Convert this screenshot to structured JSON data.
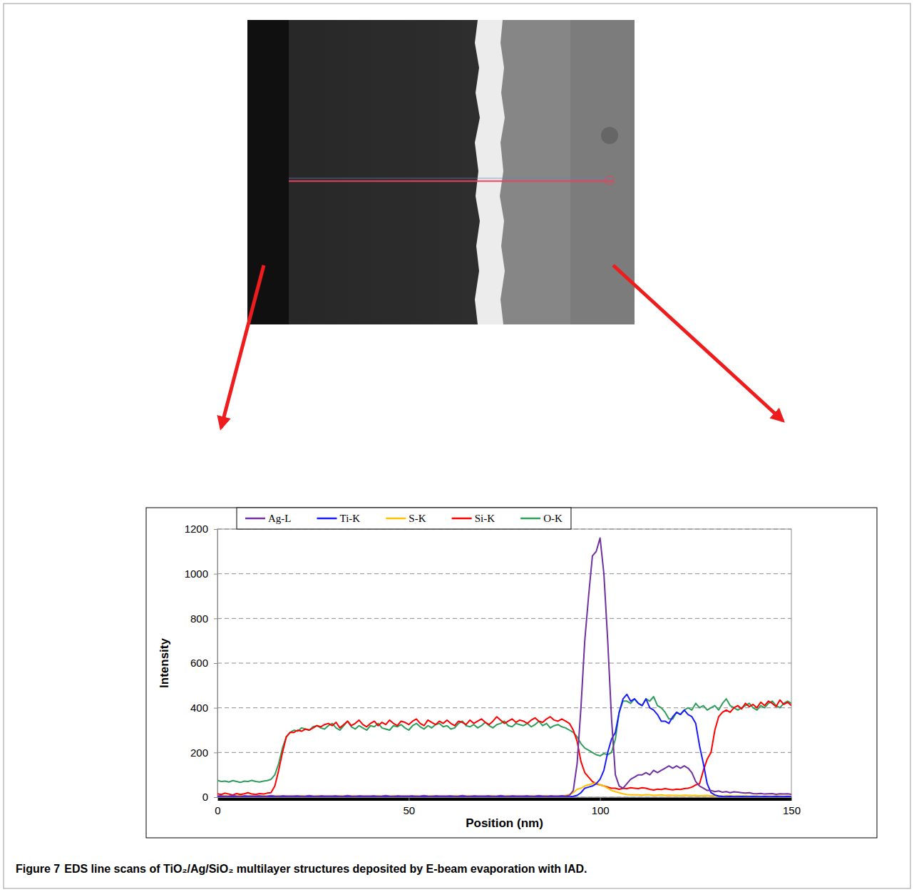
{
  "chart_data": {
    "type": "line",
    "x_label": "Position (nm)",
    "y_label": "Intensity",
    "x": [
      0,
      1,
      2,
      3,
      4,
      5,
      6,
      7,
      8,
      9,
      10,
      11,
      12,
      13,
      14,
      15,
      16,
      17,
      18,
      19,
      20,
      21,
      22,
      23,
      24,
      25,
      26,
      27,
      28,
      29,
      30,
      31,
      32,
      33,
      34,
      35,
      36,
      37,
      38,
      39,
      40,
      41,
      42,
      43,
      44,
      45,
      46,
      47,
      48,
      49,
      50,
      51,
      52,
      53,
      54,
      55,
      56,
      57,
      58,
      59,
      60,
      61,
      62,
      63,
      64,
      65,
      66,
      67,
      68,
      69,
      70,
      71,
      72,
      73,
      74,
      75,
      76,
      77,
      78,
      79,
      80,
      81,
      82,
      83,
      84,
      85,
      86,
      87,
      88,
      89,
      90,
      91,
      92,
      93,
      94,
      95,
      96,
      97,
      98,
      99,
      100,
      101,
      102,
      103,
      104,
      105,
      106,
      107,
      108,
      109,
      110,
      111,
      112,
      113,
      114,
      115,
      116,
      117,
      118,
      119,
      120,
      121,
      122,
      123,
      124,
      125,
      126,
      127,
      128,
      129,
      130,
      131,
      132,
      133,
      134,
      135,
      136,
      137,
      138,
      139,
      140,
      141,
      142,
      143,
      144,
      145,
      146,
      147,
      148,
      149,
      150
    ],
    "series": [
      {
        "name": "Ag-L",
        "color": "#7030a0",
        "values": [
          5,
          6,
          4,
          5,
          7,
          5,
          4,
          6,
          5,
          5,
          5,
          6,
          4,
          5,
          7,
          5,
          4,
          6,
          5,
          5,
          5,
          6,
          4,
          5,
          7,
          5,
          4,
          6,
          5,
          5,
          5,
          6,
          4,
          5,
          7,
          5,
          4,
          6,
          5,
          5,
          5,
          6,
          4,
          5,
          7,
          5,
          4,
          6,
          5,
          5,
          5,
          6,
          4,
          5,
          7,
          5,
          4,
          6,
          5,
          5,
          5,
          6,
          4,
          5,
          7,
          5,
          4,
          6,
          5,
          5,
          5,
          6,
          4,
          5,
          7,
          5,
          4,
          6,
          5,
          5,
          5,
          6,
          4,
          5,
          7,
          5,
          4,
          6,
          5,
          5,
          6,
          5,
          8,
          30,
          150,
          400,
          700,
          900,
          1080,
          1100,
          1160,
          1000,
          700,
          350,
          100,
          50,
          40,
          60,
          80,
          90,
          100,
          100,
          110,
          100,
          120,
          110,
          120,
          130,
          140,
          130,
          140,
          130,
          140,
          130,
          110,
          70,
          50,
          40,
          30,
          30,
          25,
          28,
          22,
          25,
          20,
          24,
          22,
          20,
          18,
          20,
          16,
          15,
          17,
          14,
          15,
          16,
          13,
          15,
          14,
          15,
          13
        ]
      },
      {
        "name": "Ti-K",
        "color": "#1a1aff",
        "values": [
          2,
          3,
          2,
          2,
          3,
          2,
          2,
          3,
          2,
          2,
          2,
          3,
          2,
          2,
          3,
          2,
          2,
          3,
          2,
          2,
          2,
          3,
          2,
          2,
          3,
          2,
          2,
          3,
          2,
          2,
          2,
          3,
          2,
          2,
          3,
          2,
          2,
          3,
          2,
          2,
          2,
          3,
          2,
          2,
          3,
          2,
          2,
          3,
          2,
          2,
          2,
          3,
          2,
          2,
          3,
          2,
          2,
          3,
          2,
          2,
          2,
          3,
          2,
          2,
          3,
          2,
          2,
          3,
          2,
          2,
          2,
          3,
          2,
          2,
          3,
          2,
          2,
          3,
          2,
          2,
          2,
          3,
          2,
          2,
          3,
          2,
          2,
          3,
          2,
          2,
          2,
          3,
          2,
          4,
          8,
          20,
          40,
          45,
          50,
          60,
          80,
          120,
          200,
          260,
          290,
          380,
          440,
          460,
          430,
          440,
          420,
          410,
          440,
          400,
          390,
          370,
          340,
          340,
          330,
          360,
          380,
          370,
          390,
          370,
          360,
          330,
          230,
          150,
          60,
          20,
          10,
          5,
          3,
          2,
          3,
          2,
          2,
          3,
          2,
          2,
          3,
          2,
          2,
          3,
          2,
          2,
          3,
          2,
          2,
          3,
          2
        ]
      },
      {
        "name": "S-K",
        "color": "#ffc000",
        "values": [
          5,
          4,
          6,
          5,
          3,
          5,
          6,
          4,
          5,
          5,
          5,
          4,
          6,
          5,
          3,
          5,
          6,
          4,
          5,
          5,
          5,
          4,
          6,
          5,
          3,
          5,
          6,
          4,
          5,
          5,
          5,
          4,
          6,
          5,
          3,
          5,
          6,
          4,
          5,
          5,
          5,
          4,
          6,
          5,
          3,
          5,
          6,
          4,
          5,
          5,
          5,
          4,
          6,
          5,
          3,
          5,
          6,
          4,
          5,
          5,
          5,
          4,
          6,
          5,
          3,
          5,
          6,
          4,
          5,
          5,
          5,
          4,
          6,
          5,
          3,
          5,
          6,
          4,
          5,
          5,
          5,
          4,
          6,
          5,
          3,
          5,
          6,
          4,
          5,
          5,
          6,
          8,
          12,
          20,
          35,
          40,
          50,
          55,
          60,
          65,
          55,
          50,
          40,
          30,
          25,
          20,
          15,
          12,
          10,
          10,
          10,
          9,
          11,
          10,
          8,
          9,
          10,
          8,
          9,
          8,
          8,
          7,
          9,
          8,
          7,
          8,
          6,
          7,
          8,
          6,
          7,
          6,
          5,
          6,
          7,
          5,
          6,
          5,
          6,
          5,
          5,
          6,
          4,
          5,
          5,
          4,
          6,
          5,
          4,
          5,
          5
        ]
      },
      {
        "name": "Si-K",
        "color": "#ff0000",
        "values": [
          15,
          12,
          18,
          14,
          10,
          16,
          12,
          15,
          20,
          14,
          12,
          16,
          14,
          18,
          20,
          50,
          120,
          200,
          270,
          290,
          290,
          300,
          295,
          305,
          300,
          310,
          320,
          315,
          325,
          330,
          320,
          335,
          310,
          325,
          340,
          320,
          330,
          345,
          325,
          315,
          330,
          340,
          320,
          335,
          325,
          345,
          330,
          320,
          340,
          335,
          325,
          340,
          350,
          330,
          320,
          345,
          335,
          325,
          340,
          330,
          345,
          330,
          320,
          340,
          335,
          325,
          345,
          330,
          340,
          350,
          335,
          325,
          340,
          360,
          345,
          330,
          340,
          350,
          335,
          345,
          340,
          330,
          345,
          355,
          340,
          335,
          350,
          360,
          345,
          340,
          350,
          340,
          330,
          300,
          250,
          160,
          110,
          90,
          70,
          60,
          55,
          50,
          45,
          40,
          40,
          35,
          40,
          38,
          42,
          40,
          38,
          42,
          40,
          35,
          32,
          36,
          34,
          38,
          35,
          33,
          36,
          34,
          38,
          40,
          45,
          55,
          60,
          120,
          170,
          200,
          300,
          360,
          380,
          390,
          380,
          400,
          410,
          395,
          420,
          405,
          415,
          400,
          425,
          410,
          430,
          420,
          405,
          435,
          415,
          425,
          410
        ]
      },
      {
        "name": "O-K",
        "color": "#2e9e5b",
        "values": [
          75,
          70,
          72,
          68,
          74,
          70,
          66,
          72,
          70,
          75,
          70,
          68,
          72,
          74,
          80,
          100,
          150,
          220,
          270,
          290,
          300,
          295,
          310,
          305,
          300,
          315,
          320,
          310,
          305,
          320,
          330,
          310,
          300,
          320,
          340,
          315,
          305,
          320,
          310,
          300,
          320,
          315,
          330,
          310,
          305,
          300,
          320,
          315,
          325,
          310,
          300,
          320,
          330,
          315,
          305,
          320,
          310,
          325,
          330,
          315,
          320,
          305,
          310,
          330,
          340,
          320,
          315,
          325,
          310,
          320,
          335,
          320,
          310,
          325,
          330,
          340,
          320,
          315,
          330,
          325,
          320,
          330,
          315,
          325,
          340,
          320,
          330,
          310,
          320,
          325,
          315,
          310,
          300,
          290,
          270,
          240,
          220,
          210,
          200,
          190,
          185,
          195,
          190,
          200,
          260,
          380,
          430,
          430,
          420,
          440,
          420,
          410,
          440,
          430,
          450,
          410,
          400,
          380,
          350,
          350,
          380,
          370,
          390,
          400,
          390,
          420,
          400,
          410,
          390,
          400,
          410,
          390,
          420,
          440,
          410,
          400,
          390,
          400,
          410,
          420,
          400,
          390,
          410,
          400,
          420,
          430,
          410,
          400,
          420,
          430,
          420
        ]
      }
    ],
    "xlim": [
      0,
      150
    ],
    "xticks": [
      0,
      50,
      100,
      150
    ],
    "ylim": [
      0,
      1200
    ],
    "yticks": [
      0,
      200,
      400,
      600,
      800,
      1000,
      1200
    ],
    "grid": true,
    "legend": "top-left"
  },
  "caption": {
    "label": "Figure 7",
    "text": "EDS line scans of TiO₂/Ag/SiO₂ multilayer structures deposited by E-beam evaporation with IAD."
  }
}
